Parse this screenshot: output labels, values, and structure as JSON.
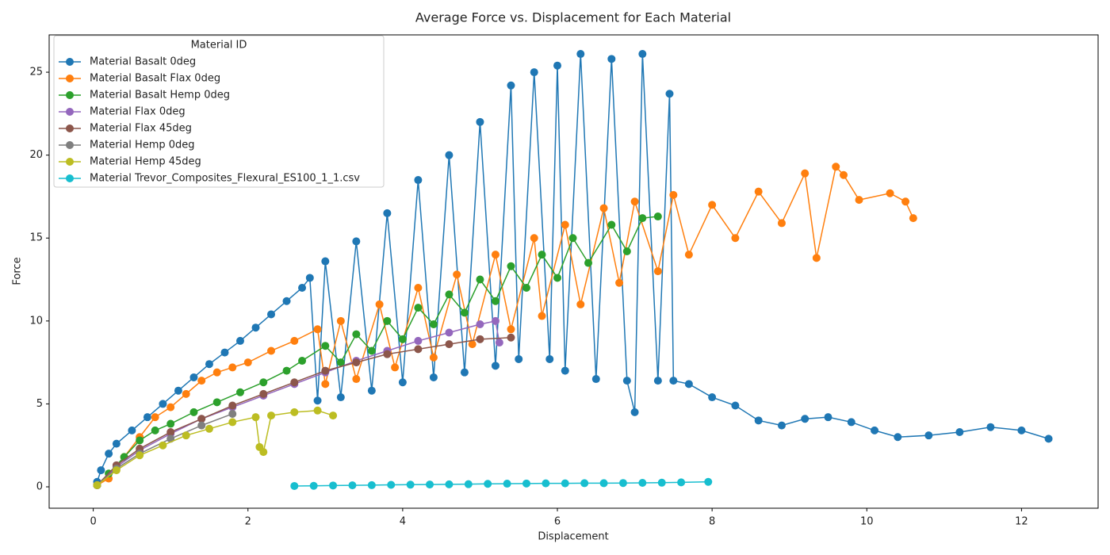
{
  "chart_data": {
    "type": "line",
    "title": "Average Force vs. Displacement for Each Material",
    "x_label": "Displacement",
    "y_label": "Force",
    "legend_title": "Material ID",
    "legend": "upper left",
    "grid": false,
    "xlim": [
      -0.57,
      12.99
    ],
    "ylim": [
      -1.29,
      27.25
    ],
    "xticks": [
      0,
      2,
      4,
      6,
      8,
      10,
      12
    ],
    "yticks": [
      0,
      5,
      10,
      15,
      20,
      25
    ],
    "series": [
      {
        "name": "Material Basalt 0deg",
        "color": "#1f77b4",
        "x": [
          0.05,
          0.1,
          0.2,
          0.3,
          0.5,
          0.7,
          0.9,
          1.1,
          1.3,
          1.5,
          1.7,
          1.9,
          2.1,
          2.3,
          2.5,
          2.7,
          2.8,
          2.9,
          3.0,
          3.2,
          3.4,
          3.6,
          3.8,
          4.0,
          4.2,
          4.4,
          4.6,
          4.8,
          5.0,
          5.2,
          5.4,
          5.5,
          5.7,
          5.9,
          6.0,
          6.1,
          6.3,
          6.5,
          6.7,
          6.9,
          7.0,
          7.1,
          7.3,
          7.45,
          7.5,
          7.7,
          8.0,
          8.3,
          8.6,
          8.9,
          9.2,
          9.5,
          9.8,
          10.1,
          10.4,
          10.8,
          11.2,
          11.6,
          12.0,
          12.35
        ],
        "values": [
          0.3,
          1.0,
          2.0,
          2.6,
          3.4,
          4.2,
          5.0,
          5.8,
          6.6,
          7.4,
          8.1,
          8.8,
          9.6,
          10.4,
          11.2,
          12.0,
          12.6,
          5.2,
          13.6,
          5.4,
          14.8,
          5.8,
          16.5,
          6.3,
          18.5,
          6.6,
          20.0,
          6.9,
          22.0,
          7.3,
          24.2,
          7.7,
          25.0,
          7.7,
          25.4,
          7.0,
          26.1,
          6.5,
          25.8,
          6.4,
          4.5,
          26.1,
          6.4,
          23.7,
          6.4,
          6.2,
          5.4,
          4.9,
          4.0,
          3.7,
          4.1,
          4.2,
          3.9,
          3.4,
          3.0,
          3.1,
          3.3,
          3.6,
          3.4,
          2.9
        ]
      },
      {
        "name": "Material Basalt Flax 0deg",
        "color": "#ff7f0e",
        "x": [
          0.05,
          0.2,
          0.4,
          0.6,
          0.8,
          1.0,
          1.2,
          1.4,
          1.6,
          1.8,
          2.0,
          2.3,
          2.6,
          2.9,
          3.0,
          3.2,
          3.4,
          3.7,
          3.9,
          4.2,
          4.4,
          4.7,
          4.9,
          5.2,
          5.4,
          5.7,
          5.8,
          6.1,
          6.3,
          6.6,
          6.8,
          7.0,
          7.3,
          7.5,
          7.7,
          8.0,
          8.3,
          8.6,
          8.9,
          9.2,
          9.35,
          9.6,
          9.7,
          9.9,
          10.3,
          10.5,
          10.6
        ],
        "values": [
          0.1,
          0.5,
          1.8,
          3.0,
          4.2,
          4.8,
          5.6,
          6.4,
          6.9,
          7.2,
          7.5,
          8.2,
          8.8,
          9.5,
          6.2,
          10.0,
          6.5,
          11.0,
          7.2,
          12.0,
          7.8,
          12.8,
          8.6,
          14.0,
          9.5,
          15.0,
          10.3,
          15.8,
          11.0,
          16.8,
          12.3,
          17.2,
          13.0,
          17.6,
          14.0,
          17.0,
          15.0,
          17.8,
          15.9,
          18.9,
          13.8,
          19.3,
          18.8,
          17.3,
          17.7,
          17.2,
          16.2
        ]
      },
      {
        "name": "Material Basalt Hemp 0deg",
        "color": "#2ca02c",
        "x": [
          0.05,
          0.2,
          0.4,
          0.6,
          0.8,
          1.0,
          1.3,
          1.6,
          1.9,
          2.2,
          2.5,
          2.7,
          3.0,
          3.2,
          3.4,
          3.6,
          3.8,
          4.0,
          4.2,
          4.4,
          4.6,
          4.8,
          5.0,
          5.2,
          5.4,
          5.6,
          5.8,
          6.0,
          6.2,
          6.4,
          6.7,
          6.9,
          7.1,
          7.3
        ],
        "values": [
          0.1,
          0.8,
          1.8,
          2.8,
          3.4,
          3.8,
          4.5,
          5.1,
          5.7,
          6.3,
          7.0,
          7.6,
          8.5,
          7.5,
          9.2,
          8.2,
          10.0,
          8.9,
          10.8,
          9.8,
          11.6,
          10.5,
          12.5,
          11.2,
          13.3,
          12.0,
          14.0,
          12.6,
          15.0,
          13.5,
          15.8,
          14.2,
          16.2,
          16.3
        ]
      },
      {
        "name": "Material Flax 0deg",
        "color": "#9467bd",
        "x": [
          0.05,
          0.3,
          0.6,
          1.0,
          1.4,
          1.8,
          2.2,
          2.6,
          3.0,
          3.4,
          3.8,
          4.2,
          4.6,
          5.0,
          5.2,
          5.25
        ],
        "values": [
          0.1,
          1.2,
          2.2,
          3.2,
          4.1,
          4.8,
          5.5,
          6.2,
          6.9,
          7.6,
          8.2,
          8.8,
          9.3,
          9.8,
          10.0,
          8.7
        ]
      },
      {
        "name": "Material Flax 45deg",
        "color": "#8c564b",
        "x": [
          0.05,
          0.3,
          0.6,
          1.0,
          1.4,
          1.8,
          2.2,
          2.6,
          3.0,
          3.4,
          3.8,
          4.2,
          4.6,
          5.0,
          5.4
        ],
        "values": [
          0.1,
          1.3,
          2.3,
          3.3,
          4.1,
          4.9,
          5.6,
          6.3,
          7.0,
          7.5,
          8.0,
          8.3,
          8.6,
          8.9,
          9.0
        ]
      },
      {
        "name": "Material Hemp 0deg",
        "color": "#7f7f7f",
        "x": [
          0.05,
          0.3,
          0.6,
          1.0,
          1.4,
          1.8
        ],
        "values": [
          0.1,
          1.1,
          2.0,
          2.9,
          3.7,
          4.4
        ]
      },
      {
        "name": "Material Hemp 45deg",
        "color": "#bcbd22",
        "x": [
          0.05,
          0.3,
          0.6,
          0.9,
          1.2,
          1.5,
          1.8,
          2.1,
          2.15,
          2.2,
          2.3,
          2.6,
          2.9,
          3.1
        ],
        "values": [
          0.1,
          1.0,
          1.9,
          2.5,
          3.1,
          3.5,
          3.9,
          4.2,
          2.4,
          2.1,
          4.3,
          4.5,
          4.6,
          4.3
        ]
      },
      {
        "name": "Material Trevor_Composites_Flexural_ES100_1_1.csv",
        "color": "#17becf",
        "x": [
          2.6,
          2.85,
          3.1,
          3.35,
          3.6,
          3.85,
          4.1,
          4.35,
          4.6,
          4.85,
          5.1,
          5.35,
          5.6,
          5.85,
          6.1,
          6.35,
          6.6,
          6.85,
          7.1,
          7.35,
          7.6,
          7.95
        ],
        "values": [
          0.05,
          0.06,
          0.08,
          0.09,
          0.1,
          0.12,
          0.13,
          0.14,
          0.15,
          0.16,
          0.18,
          0.19,
          0.2,
          0.21,
          0.21,
          0.22,
          0.22,
          0.23,
          0.24,
          0.25,
          0.27,
          0.3
        ]
      }
    ]
  }
}
